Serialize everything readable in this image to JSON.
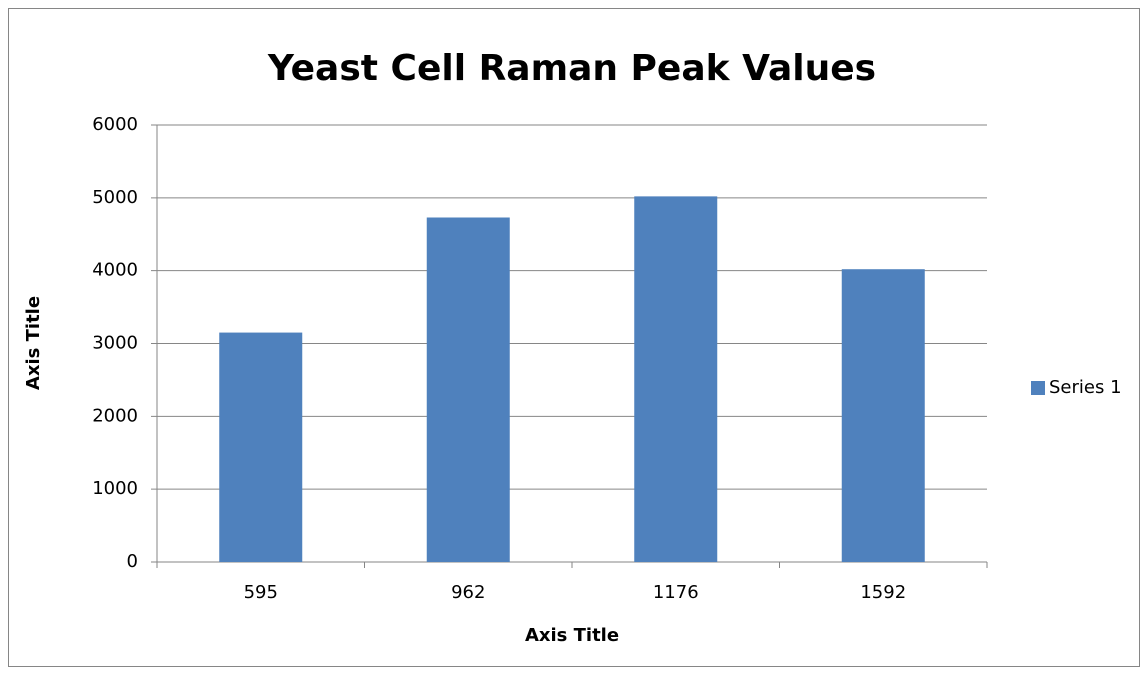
{
  "chart_data": {
    "type": "bar",
    "title": "Yeast Cell Raman Peak Values",
    "x_label": "Axis Title",
    "y_label": "Axis Title",
    "categories": [
      "595",
      "962",
      "1176",
      "1592"
    ],
    "series": [
      {
        "name": "Series 1",
        "color": "#4f81bd",
        "values": [
          3150,
          4730,
          5020,
          4020
        ]
      }
    ],
    "ylim": [
      0,
      6000
    ],
    "yticks": [
      0,
      1000,
      2000,
      3000,
      4000,
      5000,
      6000
    ],
    "grid": true,
    "legend": "right"
  }
}
